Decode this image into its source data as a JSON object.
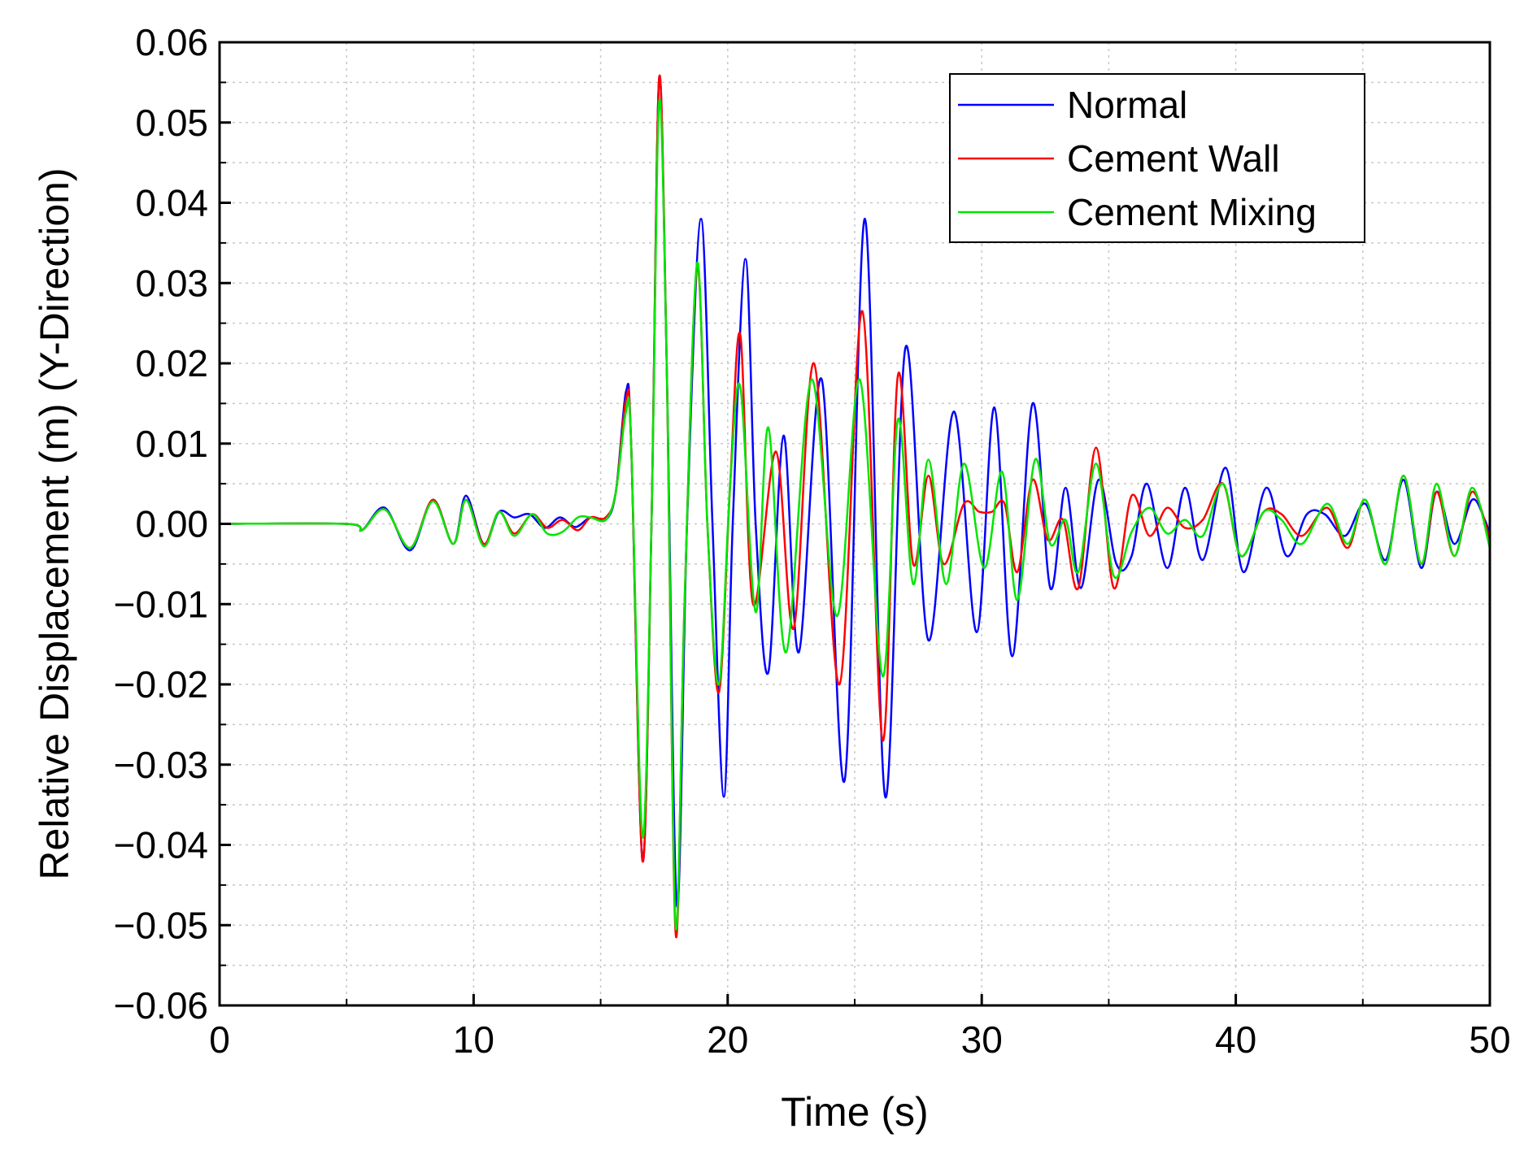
{
  "chart_data": {
    "type": "line",
    "title": "",
    "xlabel": "Time (s)",
    "ylabel": "Relative Displacement (m) (Y-Direction)",
    "xlim": [
      0,
      50
    ],
    "ylim": [
      -0.06,
      0.06
    ],
    "grid": true,
    "legend_position": "top-right",
    "x_ticks": [
      0,
      10,
      20,
      30,
      40,
      50
    ],
    "x_tick_labels": [
      "0",
      "10",
      "20",
      "30",
      "40",
      "50"
    ],
    "y_ticks": [
      -0.06,
      -0.05,
      -0.04,
      -0.03,
      -0.02,
      -0.01,
      0.0,
      0.01,
      0.02,
      0.03,
      0.04,
      0.05,
      0.06
    ],
    "y_tick_labels": [
      "−0.06",
      "−0.05",
      "−0.04",
      "−0.03",
      "−0.02",
      "−0.01",
      "0.00",
      "0.01",
      "0.02",
      "0.03",
      "0.04",
      "0.05",
      "0.06"
    ],
    "series": [
      {
        "name": "Normal",
        "color": "#0000ff",
        "points": [
          [
            0,
            0
          ],
          [
            5,
            0
          ],
          [
            5.6,
            -0.0008
          ],
          [
            6.5,
            0.002
          ],
          [
            7.5,
            -0.0033
          ],
          [
            8.4,
            0.003
          ],
          [
            9.2,
            -0.0025
          ],
          [
            9.7,
            0.0035
          ],
          [
            10.4,
            -0.0025
          ],
          [
            11,
            0.0015
          ],
          [
            11.6,
            0.0008
          ],
          [
            12.2,
            0.0012
          ],
          [
            12.8,
            -0.0005
          ],
          [
            13.4,
            0.0008
          ],
          [
            14,
            -0.0004
          ],
          [
            14.6,
            0.0008
          ],
          [
            15.2,
            0.0005
          ],
          [
            15.6,
            0.004
          ],
          [
            16,
            0.0165
          ],
          [
            16.2,
            0.01
          ],
          [
            16.65,
            -0.042
          ],
          [
            17,
            0.0
          ],
          [
            17.3,
            0.0555
          ],
          [
            17.6,
            0.02
          ],
          [
            18,
            -0.0475
          ],
          [
            18.4,
            0.0
          ],
          [
            18.95,
            0.038
          ],
          [
            19.4,
            0.0
          ],
          [
            19.85,
            -0.034
          ],
          [
            20.2,
            0.0
          ],
          [
            20.7,
            0.033
          ],
          [
            21.1,
            0.0
          ],
          [
            21.6,
            -0.0185
          ],
          [
            22.2,
            0.011
          ],
          [
            22.8,
            -0.016
          ],
          [
            23.7,
            0.018
          ],
          [
            24.6,
            -0.032
          ],
          [
            25.4,
            0.038
          ],
          [
            26.2,
            -0.034
          ],
          [
            27,
            0.022
          ],
          [
            27.9,
            -0.0145
          ],
          [
            28.9,
            0.014
          ],
          [
            29.8,
            -0.0135
          ],
          [
            30.5,
            0.0145
          ],
          [
            31.2,
            -0.0165
          ],
          [
            32,
            0.015
          ],
          [
            32.7,
            -0.008
          ],
          [
            33.3,
            0.0045
          ],
          [
            33.9,
            -0.008
          ],
          [
            34.6,
            0.0055
          ],
          [
            35.3,
            -0.005
          ],
          [
            35.9,
            -0.004
          ],
          [
            36.5,
            0.005
          ],
          [
            37.3,
            -0.0055
          ],
          [
            38,
            0.0045
          ],
          [
            38.7,
            -0.0045
          ],
          [
            39.6,
            0.007
          ],
          [
            40.3,
            -0.006
          ],
          [
            41.2,
            0.0045
          ],
          [
            42,
            -0.004
          ],
          [
            42.8,
            0.0012
          ],
          [
            43.5,
            0.0012
          ],
          [
            44.3,
            -0.0015
          ],
          [
            45.1,
            0.0025
          ],
          [
            45.9,
            -0.0045
          ],
          [
            46.6,
            0.0055
          ],
          [
            47.3,
            -0.0055
          ],
          [
            47.9,
            0.004
          ],
          [
            48.6,
            -0.0025
          ],
          [
            49.3,
            0.003
          ],
          [
            49.8,
            0.0005
          ],
          [
            50,
            -0.0015
          ]
        ]
      },
      {
        "name": "Cement Wall",
        "color": "#ff0000",
        "points": [
          [
            0,
            0
          ],
          [
            5,
            0
          ],
          [
            5.6,
            -0.0008
          ],
          [
            6.5,
            0.0018
          ],
          [
            7.5,
            -0.003
          ],
          [
            8.4,
            0.003
          ],
          [
            9.2,
            -0.0025
          ],
          [
            9.7,
            0.003
          ],
          [
            10.4,
            -0.0025
          ],
          [
            11,
            0.0015
          ],
          [
            11.6,
            -0.0012
          ],
          [
            12.3,
            0.0012
          ],
          [
            12.9,
            -0.0005
          ],
          [
            13.5,
            0.0005
          ],
          [
            14.1,
            -0.0008
          ],
          [
            14.6,
            0.0008
          ],
          [
            15.2,
            0.0008
          ],
          [
            15.6,
            0.004
          ],
          [
            16,
            0.0155
          ],
          [
            16.2,
            0.01
          ],
          [
            16.65,
            -0.042
          ],
          [
            17,
            0.0
          ],
          [
            17.3,
            0.0555
          ],
          [
            17.6,
            0.02
          ],
          [
            17.95,
            -0.051
          ],
          [
            18.3,
            -0.01
          ],
          [
            18.8,
            0.032
          ],
          [
            19.2,
            0.0
          ],
          [
            19.65,
            -0.021
          ],
          [
            20.1,
            0.005
          ],
          [
            20.5,
            0.0235
          ],
          [
            21,
            -0.01
          ],
          [
            21.9,
            0.009
          ],
          [
            22.6,
            -0.013
          ],
          [
            23.4,
            0.02
          ],
          [
            24.4,
            -0.02
          ],
          [
            25.3,
            0.0265
          ],
          [
            26.1,
            -0.027
          ],
          [
            26.7,
            0.0185
          ],
          [
            27.3,
            -0.005
          ],
          [
            27.9,
            0.006
          ],
          [
            28.5,
            -0.005
          ],
          [
            29.3,
            0.0025
          ],
          [
            29.9,
            0.0015
          ],
          [
            30.4,
            0.0015
          ],
          [
            30.9,
            0.0025
          ],
          [
            31.4,
            -0.006
          ],
          [
            32,
            0.0055
          ],
          [
            32.6,
            -0.002
          ],
          [
            33.2,
            0.0005
          ],
          [
            33.8,
            -0.008
          ],
          [
            34.5,
            0.0095
          ],
          [
            35.2,
            -0.008
          ],
          [
            35.9,
            0.0035
          ],
          [
            36.6,
            -0.0015
          ],
          [
            37.3,
            0.002
          ],
          [
            38,
            -0.0005
          ],
          [
            38.7,
            0.0005
          ],
          [
            39.5,
            0.005
          ],
          [
            40.2,
            -0.004
          ],
          [
            41.1,
            0.0015
          ],
          [
            41.8,
            0.0012
          ],
          [
            42.6,
            -0.0015
          ],
          [
            43.6,
            0.002
          ],
          [
            44.4,
            -0.003
          ],
          [
            45.1,
            0.003
          ],
          [
            45.9,
            -0.005
          ],
          [
            46.6,
            0.006
          ],
          [
            47.3,
            -0.005
          ],
          [
            47.9,
            0.004
          ],
          [
            48.6,
            -0.004
          ],
          [
            49.3,
            0.004
          ],
          [
            50,
            -0.002
          ]
        ]
      },
      {
        "name": "Cement Mixing",
        "color": "#00e600",
        "points": [
          [
            0,
            0
          ],
          [
            5,
            0
          ],
          [
            5.6,
            -0.0008
          ],
          [
            6.5,
            0.0018
          ],
          [
            7.5,
            -0.003
          ],
          [
            8.4,
            0.0028
          ],
          [
            9.2,
            -0.0025
          ],
          [
            9.7,
            0.003
          ],
          [
            10.4,
            -0.0028
          ],
          [
            11,
            0.0015
          ],
          [
            11.6,
            -0.0015
          ],
          [
            12.3,
            0.0012
          ],
          [
            12.9,
            -0.0012
          ],
          [
            13.5,
            -0.001
          ],
          [
            14.1,
            0.0008
          ],
          [
            14.6,
            0.0008
          ],
          [
            15.2,
            0.0005
          ],
          [
            15.6,
            0.004
          ],
          [
            16,
            0.014
          ],
          [
            16.2,
            0.01
          ],
          [
            16.65,
            -0.039
          ],
          [
            17,
            0.0
          ],
          [
            17.3,
            0.0525
          ],
          [
            17.6,
            0.02
          ],
          [
            17.95,
            -0.05
          ],
          [
            18.3,
            -0.01
          ],
          [
            18.8,
            0.0325
          ],
          [
            19.2,
            0.0
          ],
          [
            19.65,
            -0.02
          ],
          [
            20.1,
            0.005
          ],
          [
            20.5,
            0.017
          ],
          [
            21.1,
            -0.011
          ],
          [
            21.6,
            0.012
          ],
          [
            22.3,
            -0.016
          ],
          [
            23.3,
            0.018
          ],
          [
            24.3,
            -0.0115
          ],
          [
            25.2,
            0.018
          ],
          [
            26.1,
            -0.019
          ],
          [
            26.7,
            0.013
          ],
          [
            27.3,
            -0.0075
          ],
          [
            27.9,
            0.008
          ],
          [
            28.6,
            -0.0075
          ],
          [
            29.3,
            0.0075
          ],
          [
            30.1,
            -0.0055
          ],
          [
            30.8,
            0.0065
          ],
          [
            31.4,
            -0.0095
          ],
          [
            32.1,
            0.008
          ],
          [
            32.7,
            -0.0025
          ],
          [
            33.3,
            0.0005
          ],
          [
            33.8,
            -0.006
          ],
          [
            34.5,
            0.0075
          ],
          [
            35.2,
            -0.0065
          ],
          [
            35.9,
            -0.001
          ],
          [
            36.6,
            0.002
          ],
          [
            37.3,
            -0.0012
          ],
          [
            38,
            0.0005
          ],
          [
            38.7,
            -0.0015
          ],
          [
            39.5,
            0.005
          ],
          [
            40.2,
            -0.004
          ],
          [
            41.1,
            0.0015
          ],
          [
            41.8,
            0.0005
          ],
          [
            42.6,
            -0.0025
          ],
          [
            43.6,
            0.0025
          ],
          [
            44.4,
            -0.0025
          ],
          [
            45.1,
            0.003
          ],
          [
            45.9,
            -0.005
          ],
          [
            46.6,
            0.006
          ],
          [
            47.3,
            -0.005
          ],
          [
            47.9,
            0.005
          ],
          [
            48.6,
            -0.004
          ],
          [
            49.3,
            0.0045
          ],
          [
            50,
            -0.003
          ]
        ]
      }
    ]
  }
}
